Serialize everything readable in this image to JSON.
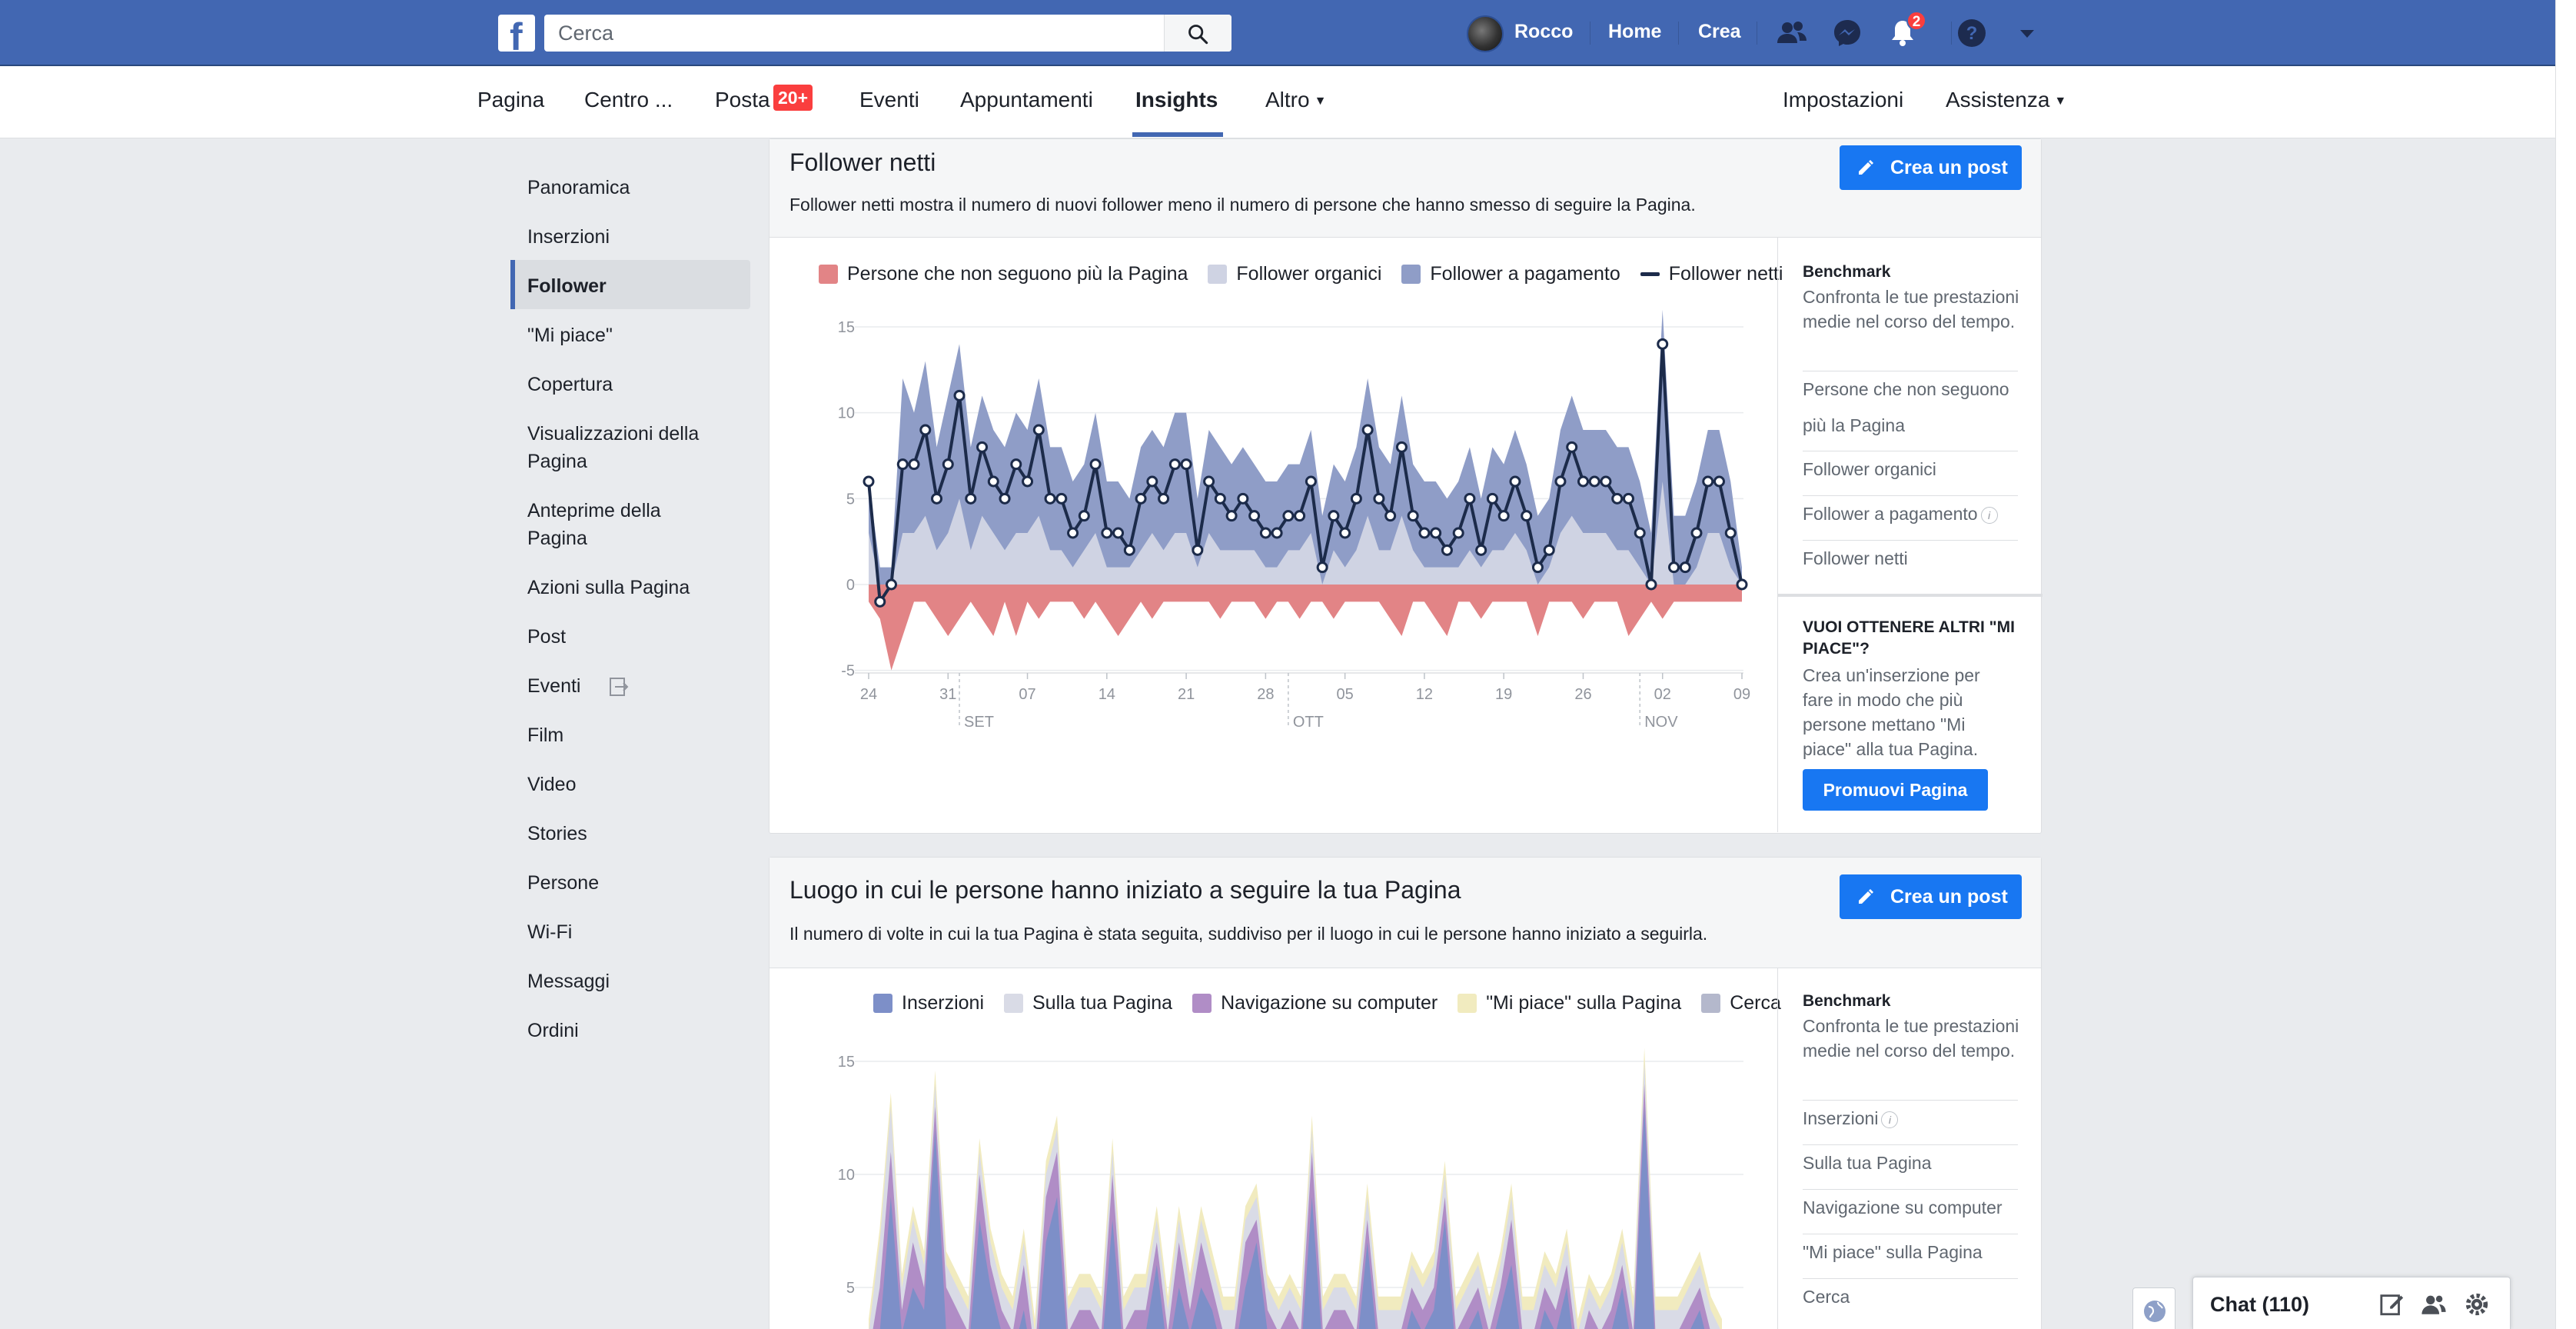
{
  "topbar": {
    "logo": "f",
    "search_placeholder": "Cerca",
    "user_name": "Rocco",
    "home": "Home",
    "create": "Crea",
    "notifications_count": "2"
  },
  "pagenav": {
    "items": [
      "Pagina",
      "Centro ...",
      "Posta",
      "Eventi",
      "Appuntamenti",
      "Insights",
      "Altro"
    ],
    "posta_badge": "20+",
    "right_items": [
      "Impostazioni",
      "Assistenza"
    ],
    "active": "Insights"
  },
  "sidebar": {
    "items": [
      "Panoramica",
      "Inserzioni",
      "Follower",
      "\"Mi piace\"",
      "Copertura",
      "Visualizzazioni della Pagina",
      "Anteprime della Pagina",
      "Azioni sulla Pagina",
      "Post",
      "Eventi",
      "Film",
      "Video",
      "Stories",
      "Persone",
      "Wi-Fi",
      "Messaggi",
      "Ordini"
    ],
    "active": "Follower"
  },
  "card1": {
    "title": "Follower netti",
    "description": "Follower netti mostra il numero di nuovi follower meno il numero di persone che hanno smesso di seguire la Pagina.",
    "button": "Crea un post",
    "legend": [
      "Persone che non seguono più la Pagina",
      "Follower organici",
      "Follower a pagamento",
      "Follower netti"
    ],
    "panel": {
      "title": "Benchmark",
      "text": "Confronta le tue prestazioni medie nel corso del tempo.",
      "links": [
        "Persone che non seguono più la Pagina",
        "Follower organici",
        "Follower a pagamento",
        "Follower netti"
      ],
      "promo_title": "VUOI OTTENERE ALTRI \"MI PIACE\"?",
      "promo_text": "Crea un'inserzione per fare in modo che più persone mettano \"Mi piace\" alla tua Pagina.",
      "promo_button": "Promuovi Pagina"
    }
  },
  "card2": {
    "title": "Luogo in cui le persone hanno iniziato a seguire la tua Pagina",
    "description": "Il numero di volte in cui la tua Pagina è stata seguita, suddiviso per il luogo in cui le persone hanno iniziato a seguirla.",
    "button": "Crea un post",
    "legend": [
      "Inserzioni",
      "Sulla tua Pagina",
      "Navigazione su computer",
      "\"Mi piace\" sulla Pagina",
      "Cerca"
    ],
    "panel": {
      "title": "Benchmark",
      "text": "Confronta le tue prestazioni medie nel corso del tempo.",
      "links": [
        "Inserzioni",
        "Sulla tua Pagina",
        "Navigazione su computer",
        "\"Mi piace\" sulla Pagina",
        "Cerca"
      ]
    }
  },
  "colors": {
    "unfollow": "#e28486",
    "organic": "#cfd3e3",
    "paid": "#8f9dc7",
    "net": "#1c2b4a",
    "ads": "#7d8fc8",
    "on_page": "#d9dbe6",
    "desktop": "#b08dc6",
    "page_likes": "#f1ebbf",
    "search": "#b4b8cc"
  },
  "chat": {
    "label": "Chat (110)"
  },
  "chart_data": [
    {
      "type": "area",
      "x_tick_labels": [
        "24",
        "31",
        "07",
        "14",
        "21",
        "28",
        "05",
        "12",
        "19",
        "26",
        "02",
        "09"
      ],
      "month_labels": [
        "SET",
        "OTT",
        "NOV"
      ],
      "y_ticks": [
        15,
        10,
        5,
        0,
        -5
      ],
      "ylim": [
        -5,
        15
      ],
      "series": [
        {
          "name": "Follower netti",
          "values": [
            6,
            -1,
            0,
            7,
            7,
            9,
            5,
            7,
            11,
            5,
            8,
            6,
            5,
            7,
            6,
            9,
            5,
            5,
            3,
            4,
            7,
            3,
            3,
            2,
            5,
            6,
            5,
            7,
            7,
            2,
            6,
            5,
            4,
            5,
            4,
            3,
            3,
            4,
            4,
            6,
            1,
            4,
            3,
            5,
            9,
            5,
            4,
            8,
            4,
            3,
            3,
            2,
            3,
            5,
            2,
            5,
            4,
            6,
            4,
            1,
            2,
            6,
            8,
            6,
            6,
            6,
            5,
            5,
            3,
            0,
            14,
            1,
            1,
            3,
            6,
            6,
            3,
            0
          ]
        },
        {
          "name": "Follower a pagamento",
          "values": [
            6,
            1,
            1,
            12,
            10,
            13,
            8,
            11,
            14,
            8,
            11,
            9,
            8,
            10,
            9,
            12,
            8,
            8,
            6,
            7,
            10,
            6,
            6,
            5,
            8,
            9,
            8,
            10,
            10,
            5,
            9,
            8,
            7,
            8,
            7,
            6,
            6,
            7,
            7,
            9,
            4,
            7,
            6,
            8,
            12,
            8,
            7,
            11,
            7,
            6,
            6,
            5,
            6,
            8,
            5,
            8,
            7,
            9,
            7,
            4,
            5,
            9,
            11,
            9,
            9,
            9,
            8,
            8,
            6,
            3,
            16,
            4,
            4,
            6,
            9,
            9,
            6,
            1
          ]
        },
        {
          "name": "Follower organici",
          "values": [
            3,
            0,
            0,
            3,
            3,
            4,
            2,
            3,
            5,
            2,
            4,
            3,
            2,
            3,
            3,
            4,
            2,
            2,
            1,
            2,
            3,
            1,
            1,
            1,
            2,
            3,
            2,
            3,
            3,
            1,
            3,
            2,
            2,
            2,
            2,
            1,
            1,
            2,
            2,
            3,
            0,
            2,
            1,
            2,
            4,
            2,
            2,
            4,
            2,
            1,
            1,
            1,
            1,
            2,
            1,
            2,
            2,
            3,
            2,
            0,
            1,
            3,
            4,
            3,
            3,
            3,
            2,
            2,
            1,
            0,
            6,
            0,
            0,
            1,
            3,
            3,
            1,
            0
          ]
        },
        {
          "name": "Persone che non seguono più la Pagina",
          "values": [
            -1,
            -2,
            -5,
            -3,
            -1,
            -1,
            -2,
            -3,
            -2,
            -1,
            -2,
            -3,
            -1,
            -3,
            -1,
            -2,
            -1,
            -1,
            -1,
            -2,
            -1,
            -2,
            -3,
            -2,
            -1,
            -2,
            -1,
            -1,
            -1,
            -1,
            -1,
            -2,
            -1,
            -1,
            -1,
            -2,
            -1,
            -1,
            -2,
            -1,
            -1,
            -2,
            -1,
            -1,
            -1,
            -1,
            -2,
            -3,
            -1,
            -1,
            -2,
            -3,
            -1,
            -1,
            -2,
            -1,
            -1,
            -1,
            -1,
            -3,
            -1,
            -1,
            -1,
            -2,
            -1,
            -1,
            -1,
            -3,
            -2,
            -1,
            -2,
            -1,
            -1,
            -1,
            -1,
            -1,
            -1,
            -1
          ]
        }
      ]
    },
    {
      "type": "area",
      "y_ticks": [
        15,
        10,
        5
      ],
      "ylim": [
        0,
        15
      ],
      "series": [
        {
          "name": "Inserzioni",
          "values": [
            1,
            3,
            9,
            3,
            5,
            4,
            12,
            3,
            3,
            2,
            8,
            5,
            3,
            2,
            4,
            1,
            7,
            9,
            2,
            3,
            3,
            2,
            8,
            2,
            3,
            3,
            6,
            2,
            5,
            3,
            5,
            4,
            2,
            2,
            5,
            7,
            3,
            2,
            3,
            2,
            9,
            2,
            3,
            3,
            2,
            7,
            2,
            2,
            2,
            4,
            3,
            4,
            8,
            2,
            3,
            4,
            2,
            4,
            6,
            2,
            2,
            4,
            3,
            5,
            1,
            3,
            2,
            3,
            5,
            2,
            13,
            2,
            2,
            2,
            3,
            4,
            2,
            1
          ]
        },
        {
          "name": "Sulla tua Pagina",
          "values": [
            1,
            2,
            2,
            1,
            1,
            1,
            1,
            1,
            1,
            1,
            1,
            1,
            1,
            1,
            1,
            1,
            1,
            1,
            1,
            1,
            1,
            1,
            1,
            1,
            1,
            1,
            1,
            1,
            1,
            1,
            1,
            1,
            1,
            1,
            1,
            1,
            1,
            1,
            1,
            1,
            1,
            1,
            1,
            1,
            1,
            1,
            1,
            1,
            1,
            1,
            1,
            1,
            1,
            1,
            1,
            1,
            1,
            1,
            1,
            1,
            1,
            1,
            1,
            1,
            1,
            1,
            1,
            1,
            1,
            1,
            1,
            1,
            1,
            1,
            1,
            1,
            1,
            1
          ]
        },
        {
          "name": "Navigazione su computer",
          "values": [
            1,
            2,
            2,
            1,
            2,
            1,
            1,
            2,
            1,
            1,
            2,
            1,
            1,
            1,
            2,
            1,
            2,
            2,
            1,
            1,
            1,
            1,
            2,
            1,
            1,
            1,
            1,
            1,
            2,
            1,
            2,
            1,
            1,
            1,
            2,
            1,
            1,
            1,
            1,
            1,
            2,
            1,
            1,
            1,
            1,
            1,
            1,
            1,
            1,
            1,
            1,
            1,
            1,
            1,
            1,
            1,
            1,
            1,
            2,
            1,
            1,
            1,
            1,
            1,
            1,
            1,
            1,
            1,
            1,
            1,
            1,
            1,
            1,
            1,
            1,
            1,
            1,
            1
          ]
        }
      ]
    }
  ]
}
